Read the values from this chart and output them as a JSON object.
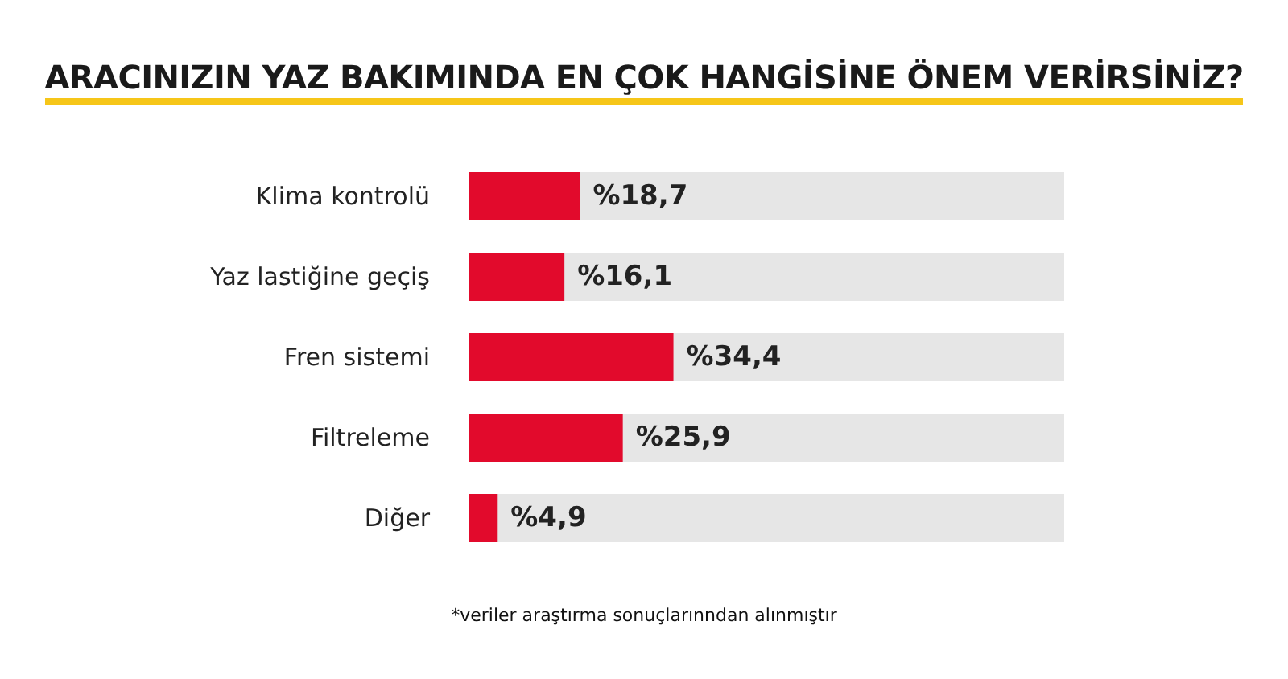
{
  "chart_data": {
    "type": "bar",
    "orientation": "horizontal",
    "title": "ARACINIZIN YAZ BAKIMINDA EN ÇOK HANGİSİNE ÖNEM VERİRSİNİZ?",
    "categories": [
      "Klima kontrolü",
      "Yaz lastiğine geçiş",
      "Fren sistemi",
      "Filtreleme",
      "Diğer"
    ],
    "values": [
      18.7,
      16.1,
      34.4,
      25.9,
      4.9
    ],
    "value_labels": [
      "%18,7",
      "%16,1",
      "%34,4",
      "%25,9",
      "%4,9"
    ],
    "color": "#e20a2c",
    "xlim": [
      0,
      100
    ],
    "tick_labels": "y",
    "grid": false,
    "annotations": [
      "*veriler araştırma sonuçlarınndan alınmıştır"
    ]
  }
}
